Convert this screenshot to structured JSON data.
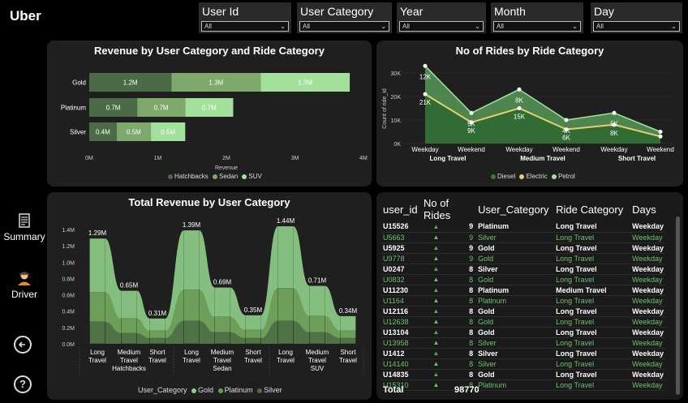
{
  "app": {
    "logo": "Uber"
  },
  "sidebar": {
    "summary_label": "Summary",
    "driver_label": "Driver",
    "back_icon": "back-arrow-icon",
    "help_label": "?"
  },
  "slicers": [
    {
      "label": "User Id",
      "value": "All"
    },
    {
      "label": "User Category",
      "value": "All"
    },
    {
      "label": "Year",
      "value": "All"
    },
    {
      "label": "Month",
      "value": "All"
    },
    {
      "label": "Day",
      "value": "All"
    }
  ],
  "revenue_chart": {
    "title": "Revenue by User Category and Ride Category",
    "xlabel": "Revenue",
    "ticks": [
      "0M",
      "1M",
      "2M",
      "3M",
      "4M"
    ],
    "legend": [
      "Hatchbacks",
      "Sedan",
      "SUV"
    ],
    "colors": [
      "#4a6b45",
      "#7fa86c",
      "#a3e09c"
    ]
  },
  "rides_chart": {
    "title": "No of Rides by Ride Category",
    "ylabel": "Count of ride_id",
    "yticks": [
      "0K",
      "10K",
      "20K",
      "30K"
    ],
    "x_days": [
      "Weekday",
      "Weekend",
      "Weekday",
      "Weekend",
      "Weekday",
      "Weekend"
    ],
    "x_groups": [
      "Long Travel",
      "Medium Travel",
      "Short Travel"
    ],
    "legend": [
      "Diesel",
      "Electric",
      "Petrol"
    ],
    "colors": [
      "#3f7a3f",
      "#e6cf6e",
      "#a3e0a3"
    ],
    "petrol_labels": [
      "12K",
      "5K",
      "8K",
      "4K",
      "5K",
      ""
    ],
    "diesel_labels": [
      "21K",
      "9K",
      "15K",
      "6K",
      "8K",
      ""
    ]
  },
  "total_chart": {
    "title": "Total Revenue by User Category",
    "yticks": [
      "0.0M",
      "0.2M",
      "0.4M",
      "0.6M",
      "0.8M",
      "1.0M",
      "1.2M",
      "1.4M"
    ],
    "value_labels": [
      "1.29M",
      "0.65M",
      "0.31M",
      "1.39M",
      "0.69M",
      "0.35M",
      "1.44M",
      "0.71M",
      "0.34M"
    ],
    "x_labels": [
      "Long\nTravel",
      "Medium\nTravel",
      "Short\nTravel",
      "Long\nTravel",
      "Medium\nTravel",
      "Short\nTravel",
      "Long\nTravel",
      "Medium\nTravel",
      "Short\nTravel"
    ],
    "group_labels": [
      "Hatchbacks",
      "Sedan",
      "SUV"
    ],
    "legend_title": "User_Category",
    "legend": [
      "Gold",
      "Platinum",
      "Silver"
    ],
    "colors": [
      "#8fd08a",
      "#6a9b58",
      "#4d6d45"
    ]
  },
  "chart_data": [
    {
      "type": "bar",
      "title": "Revenue by User Category and Ride Category",
      "xlabel": "Revenue",
      "categories": [
        "Gold",
        "Platinum",
        "Silver"
      ],
      "series": [
        {
          "name": "Hatchbacks",
          "values": [
            1.2,
            0.7,
            0.4
          ],
          "labels": [
            "1.2M",
            "0.7M",
            "0.4M"
          ]
        },
        {
          "name": "Sedan",
          "values": [
            1.3,
            0.7,
            0.5
          ],
          "labels": [
            "1.3M",
            "0.7M",
            "0.5M"
          ]
        },
        {
          "name": "SUV",
          "values": [
            1.3,
            0.7,
            0.5
          ],
          "labels": [
            "1.3M",
            "0.7M",
            "0.5M"
          ]
        }
      ],
      "xlim": [
        0,
        4
      ]
    },
    {
      "type": "area",
      "title": "No of Rides by Ride Category",
      "ylabel": "Count of ride_id",
      "categories": [
        "Long Travel Weekday",
        "Long Travel Weekend",
        "Medium Travel Weekday",
        "Medium Travel Weekend",
        "Short Travel Weekday",
        "Short Travel Weekend"
      ],
      "series": [
        {
          "name": "Petrol",
          "values": [
            33,
            13,
            23,
            10,
            13,
            5
          ]
        },
        {
          "name": "Electric",
          "values": [
            21,
            9,
            15,
            6,
            8,
            3
          ]
        },
        {
          "name": "Diesel",
          "values": [
            21,
            9,
            15,
            6,
            8,
            3
          ]
        }
      ],
      "ylim": [
        0,
        30
      ]
    },
    {
      "type": "area",
      "title": "Total Revenue by User Category",
      "categories": [
        "Hatchbacks Long Travel",
        "Hatchbacks Medium Travel",
        "Hatchbacks Short Travel",
        "Sedan Long Travel",
        "Sedan Medium Travel",
        "Sedan Short Travel",
        "SUV Long Travel",
        "SUV Medium Travel",
        "SUV Short Travel"
      ],
      "series": [
        {
          "name": "Silver",
          "values": [
            0.27,
            0.13,
            0.07,
            0.28,
            0.14,
            0.07,
            0.28,
            0.14,
            0.07
          ]
        },
        {
          "name": "Platinum",
          "values": [
            0.36,
            0.18,
            0.09,
            0.38,
            0.19,
            0.1,
            0.4,
            0.2,
            0.09
          ]
        },
        {
          "name": "Gold",
          "values": [
            0.66,
            0.34,
            0.15,
            0.73,
            0.36,
            0.18,
            0.76,
            0.37,
            0.18
          ]
        }
      ],
      "totals": [
        1.29,
        0.65,
        0.31,
        1.39,
        0.69,
        0.35,
        1.44,
        0.71,
        0.34
      ],
      "ylim": [
        0,
        1.5
      ]
    }
  ],
  "table": {
    "headers": [
      "user_id",
      "No of Rides",
      "User_Category",
      "Ride Category",
      "Days"
    ],
    "rows": [
      [
        "U15526",
        "9",
        "Platinum",
        "Long Travel",
        "Weekday"
      ],
      [
        "U5663",
        "9",
        "Silver",
        "Long Travel",
        "Weekday"
      ],
      [
        "U5925",
        "9",
        "Gold",
        "Long Travel",
        "Weekday"
      ],
      [
        "U9778",
        "9",
        "Gold",
        "Long Travel",
        "Weekday"
      ],
      [
        "U0247",
        "8",
        "Silver",
        "Long Travel",
        "Weekday"
      ],
      [
        "U0832",
        "8",
        "Gold",
        "Long Travel",
        "Weekday"
      ],
      [
        "U11230",
        "8",
        "Platinum",
        "Medium Travel",
        "Weekday"
      ],
      [
        "U1164",
        "8",
        "Platinum",
        "Long Travel",
        "Weekday"
      ],
      [
        "U12116",
        "8",
        "Gold",
        "Long Travel",
        "Weekday"
      ],
      [
        "U12638",
        "8",
        "Gold",
        "Long Travel",
        "Weekday"
      ],
      [
        "U13104",
        "8",
        "Gold",
        "Long Travel",
        "Weekday"
      ],
      [
        "U13958",
        "8",
        "Silver",
        "Long Travel",
        "Weekday"
      ],
      [
        "U1412",
        "8",
        "Silver",
        "Long Travel",
        "Weekday"
      ],
      [
        "U14140",
        "8",
        "Silver",
        "Long Travel",
        "Weekday"
      ],
      [
        "U14835",
        "8",
        "Gold",
        "Long Travel",
        "Weekday"
      ],
      [
        "U15310",
        "8",
        "Platinum",
        "Long Travel",
        "Weekday"
      ]
    ],
    "total_label": "Total",
    "total_value": "98770"
  }
}
